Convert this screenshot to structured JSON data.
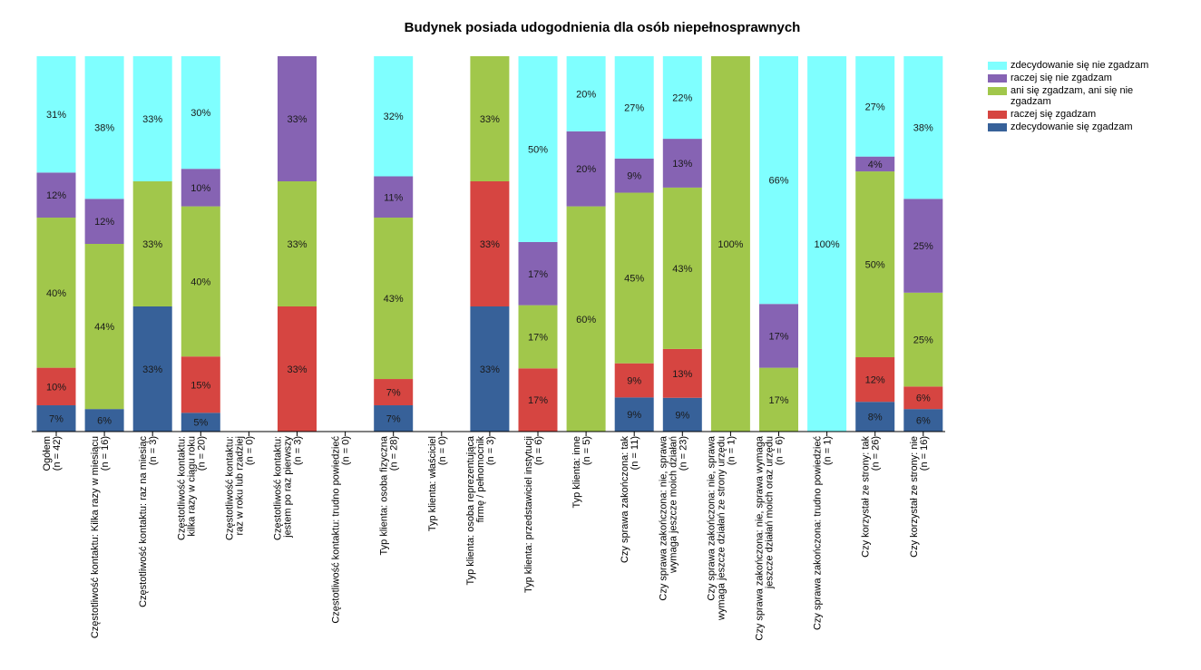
{
  "chart_data": {
    "type": "bar",
    "stacked": true,
    "percent": true,
    "title": "Budynek posiada udogodnienia dla osób niepełnosprawnych",
    "xlabel": "",
    "ylabel": "",
    "ylim": [
      0,
      100
    ],
    "grid": false,
    "legend_position": "top-right",
    "categories": [
      {
        "label": [
          "Ogółem",
          "(n = 42)"
        ]
      },
      {
        "label": [
          "Częstotliwość kontaktu: Kilka razy w miesiącu",
          "(n = 16)"
        ]
      },
      {
        "label": [
          "Częstotliwość kontaktu: raz na miesiąc",
          "(n = 3)"
        ]
      },
      {
        "label": [
          "Częstotliwość kontaktu:",
          "kilka razy w ciągu roku",
          "(n = 20)"
        ]
      },
      {
        "label": [
          "Częstotliwość kontaktu:",
          "raz w roku lub rzadziej",
          "(n = 0)"
        ]
      },
      {
        "label": [
          "Częstotliwość kontaktu:",
          "jestem po raz pierwszy",
          "(n = 3)"
        ]
      },
      {
        "label": [
          "Częstotliwość kontaktu: trudno powiedzieć",
          "(n = 0)"
        ]
      },
      {
        "label": [
          "Typ klienta: osoba fizyczna",
          "(n = 28)"
        ]
      },
      {
        "label": [
          "Typ klienta: właściciel",
          "(n = 0)"
        ]
      },
      {
        "label": [
          "Typ klienta: osoba reprezentująca",
          "firmę / pełnomocnik",
          "(n = 3)"
        ]
      },
      {
        "label": [
          "Typ klienta: przedstawiciel instytucji",
          "(n = 6)"
        ]
      },
      {
        "label": [
          "Typ klienta: inne",
          "(n = 5)"
        ]
      },
      {
        "label": [
          "Czy sprawa zakończona: tak",
          "(n = 11)"
        ]
      },
      {
        "label": [
          "Czy sprawa zakończona: nie, sprawa",
          "wymaga jeszcze moich działań",
          "(n = 23)"
        ]
      },
      {
        "label": [
          "Czy sprawa zakończona: nie, sprawa",
          "wymaga jeszcze działań ze strony urzędu",
          "(n = 1)"
        ]
      },
      {
        "label": [
          "Czy sprawa zakończona: nie, sprawa wymaga",
          "jeszcze działań moich oraz urzędu",
          "(n = 6)"
        ]
      },
      {
        "label": [
          "Czy sprawa zakończona: trudno powiedzieć",
          "(n = 1)"
        ]
      },
      {
        "label": [
          "Czy korzystał ze strony: tak",
          "(n = 26)"
        ]
      },
      {
        "label": [
          "Czy korzystał ze strony: nie",
          "(n = 16)"
        ]
      }
    ],
    "series": [
      {
        "name": "zdecydowanie się zgadzam",
        "color": "#376199",
        "values": [
          7,
          6,
          33,
          5,
          0,
          0,
          0,
          7,
          0,
          33,
          0,
          0,
          9,
          9,
          0,
          0,
          0,
          8,
          6
        ]
      },
      {
        "name": "raczej się zgadzam",
        "color": "#D64541",
        "values": [
          10,
          0,
          0,
          15,
          0,
          33,
          0,
          7,
          0,
          33,
          17,
          0,
          9,
          13,
          0,
          0,
          0,
          12,
          6
        ]
      },
      {
        "name": "ani się zgadzam, ani się nie zgadzam",
        "color": "#A1C74B",
        "values": [
          40,
          44,
          33,
          40,
          0,
          33,
          0,
          43,
          0,
          33,
          17,
          60,
          45,
          43,
          100,
          17,
          0,
          50,
          25
        ]
      },
      {
        "name": "raczej się nie zgadzam",
        "color": "#8663B3",
        "values": [
          12,
          12,
          0,
          10,
          0,
          33,
          0,
          11,
          0,
          0,
          17,
          20,
          9,
          13,
          0,
          17,
          0,
          4,
          25
        ]
      },
      {
        "name": "zdecydowanie się nie zgadzam",
        "color": "#7FFFFF",
        "values": [
          31,
          38,
          33,
          30,
          0,
          0,
          0,
          32,
          0,
          0,
          50,
          20,
          27,
          22,
          0,
          66,
          100,
          27,
          38
        ]
      }
    ],
    "legend": [
      {
        "label": "zdecydowanie się nie zgadzam",
        "color": "#7FFFFF"
      },
      {
        "label": "raczej się nie zgadzam",
        "color": "#8663B3"
      },
      {
        "label": "ani się zgadzam, ani się nie zgadzam",
        "color": "#A1C74B"
      },
      {
        "label": "raczej się zgadzam",
        "color": "#D64541"
      },
      {
        "label": "zdecydowanie się zgadzam",
        "color": "#376199"
      }
    ]
  }
}
